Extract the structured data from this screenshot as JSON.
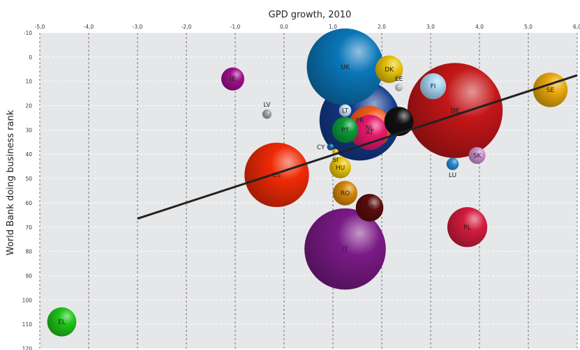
{
  "chart_data": {
    "type": "scatter",
    "title": "GPD growth, 2010",
    "xlabel": "",
    "ylabel": "World Bank doing business rank",
    "xlim": [
      -5,
      6
    ],
    "ylim": [
      -10,
      120
    ],
    "y_inverted": true,
    "grid": true,
    "x_ticks": [
      "-5,0",
      "-4,0",
      "-3,0",
      "-2,0",
      "-1,0",
      "0,0",
      "1,0",
      "2,0",
      "3,0",
      "4,0",
      "5,0",
      "6,0"
    ],
    "x_tick_values": [
      -5,
      -4,
      -3,
      -2,
      -1,
      0,
      1,
      2,
      3,
      4,
      5,
      6
    ],
    "y_ticks": [
      "-10",
      "0",
      "10",
      "20",
      "30",
      "40",
      "50",
      "60",
      "70",
      "80",
      "90",
      "100",
      "110",
      "120"
    ],
    "y_tick_values": [
      -10,
      0,
      10,
      20,
      30,
      40,
      50,
      60,
      70,
      80,
      90,
      100,
      110,
      120
    ],
    "points": [
      {
        "label": "UK",
        "x": 1.25,
        "y": 4,
        "size": 1.0,
        "color": "#0a76b8"
      },
      {
        "label": "DK",
        "x": 2.15,
        "y": 5,
        "size": 0.36,
        "color": "#e8c20a"
      },
      {
        "label": "IE",
        "x": -1.05,
        "y": 9,
        "size": 0.3,
        "color": "#a0108a"
      },
      {
        "label": "FI",
        "x": 3.05,
        "y": 12,
        "size": 0.34,
        "color": "#a8d4f0",
        "label_side": "inside"
      },
      {
        "label": "EE",
        "x": 2.35,
        "y": 12.5,
        "size": 0.1,
        "color": "#c8c8c8",
        "label_side": "outside-above"
      },
      {
        "label": "DE",
        "x": 3.5,
        "y": 22,
        "size": 1.24,
        "color": "#c41618"
      },
      {
        "label": "SE",
        "x": 5.45,
        "y": 13.5,
        "size": 0.45,
        "color": "#e8a80c"
      },
      {
        "label": "LV",
        "x": -0.35,
        "y": 23.5,
        "size": 0.12,
        "color": "#9aa0a6",
        "label_side": "outside-above"
      },
      {
        "label": "FR",
        "x": 1.55,
        "y": 26,
        "size": 1.05,
        "color": "#123a8c"
      },
      {
        "label": "BE",
        "x": 2.35,
        "y": 26.5,
        "size": 0.38,
        "color": "#111111"
      },
      {
        "label": "LT",
        "x": 1.25,
        "y": 22,
        "size": 0.16,
        "color": "#cde4f5"
      },
      {
        "label": "NL",
        "x": 1.75,
        "y": 29,
        "size": 0.56,
        "color": "#f05a1c"
      },
      {
        "label": "PT",
        "x": 1.25,
        "y": 30,
        "size": 0.34,
        "color": "#0b9a3a"
      },
      {
        "label": "AT",
        "x": 1.75,
        "y": 31,
        "size": 0.46,
        "color": "#e8196e"
      },
      {
        "label": "CY",
        "x": 0.95,
        "y": 37,
        "size": 0.09,
        "color": "#1a5fa0",
        "label_side": "outside-left"
      },
      {
        "label": "SI",
        "x": 1.05,
        "y": 39,
        "size": 0.08,
        "color": "#e8c20a",
        "label_side": "outside-below"
      },
      {
        "label": "HU",
        "x": 1.15,
        "y": 45.5,
        "size": 0.28,
        "color": "#e8c20a"
      },
      {
        "label": "SK",
        "x": 3.95,
        "y": 40.5,
        "size": 0.22,
        "color": "#c890c8"
      },
      {
        "label": "LU",
        "x": 3.45,
        "y": 44,
        "size": 0.16,
        "color": "#2a8ad0",
        "label_side": "outside-below"
      },
      {
        "label": "ES",
        "x": -0.15,
        "y": 48.5,
        "size": 0.84,
        "color": "#f02a06"
      },
      {
        "label": "RO",
        "x": 1.25,
        "y": 56,
        "size": 0.32,
        "color": "#d4860a"
      },
      {
        "label": "CZ",
        "x": 1.75,
        "y": 62,
        "size": 0.36,
        "color": "#5a0c0c"
      },
      {
        "label": "PL",
        "x": 3.75,
        "y": 70,
        "size": 0.52,
        "color": "#d41c3e"
      },
      {
        "label": "IT",
        "x": 1.25,
        "y": 79,
        "size": 1.06,
        "color": "#7a1a86"
      },
      {
        "label": "EL",
        "x": -4.55,
        "y": 109,
        "size": 0.38,
        "color": "#1ec41a"
      }
    ],
    "trendline": {
      "x1": -3.0,
      "y1": 66.5,
      "x2": 6.0,
      "y2": 7.5,
      "color": "#222222"
    }
  }
}
